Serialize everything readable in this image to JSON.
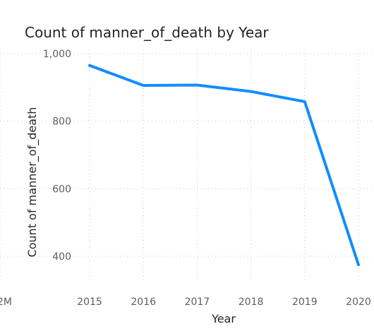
{
  "chart_data": {
    "type": "line",
    "title": "Count of manner_of_death by Year",
    "xlabel": "Year",
    "ylabel": "Count of manner_of_death",
    "categories": [
      "2015",
      "2016",
      "2017",
      "2018",
      "2019",
      "2020"
    ],
    "series": [
      {
        "values": [
          965,
          906,
          907,
          888,
          858,
          375
        ],
        "color": "#118DFF"
      }
    ],
    "ylim": [
      300,
      1000
    ],
    "yticks": [
      400,
      600,
      800,
      1000
    ],
    "ytick_labels": [
      "400",
      "600",
      "800",
      "1,000"
    ],
    "grid": true,
    "partial_left_tick": "2M",
    "legend": "none"
  }
}
